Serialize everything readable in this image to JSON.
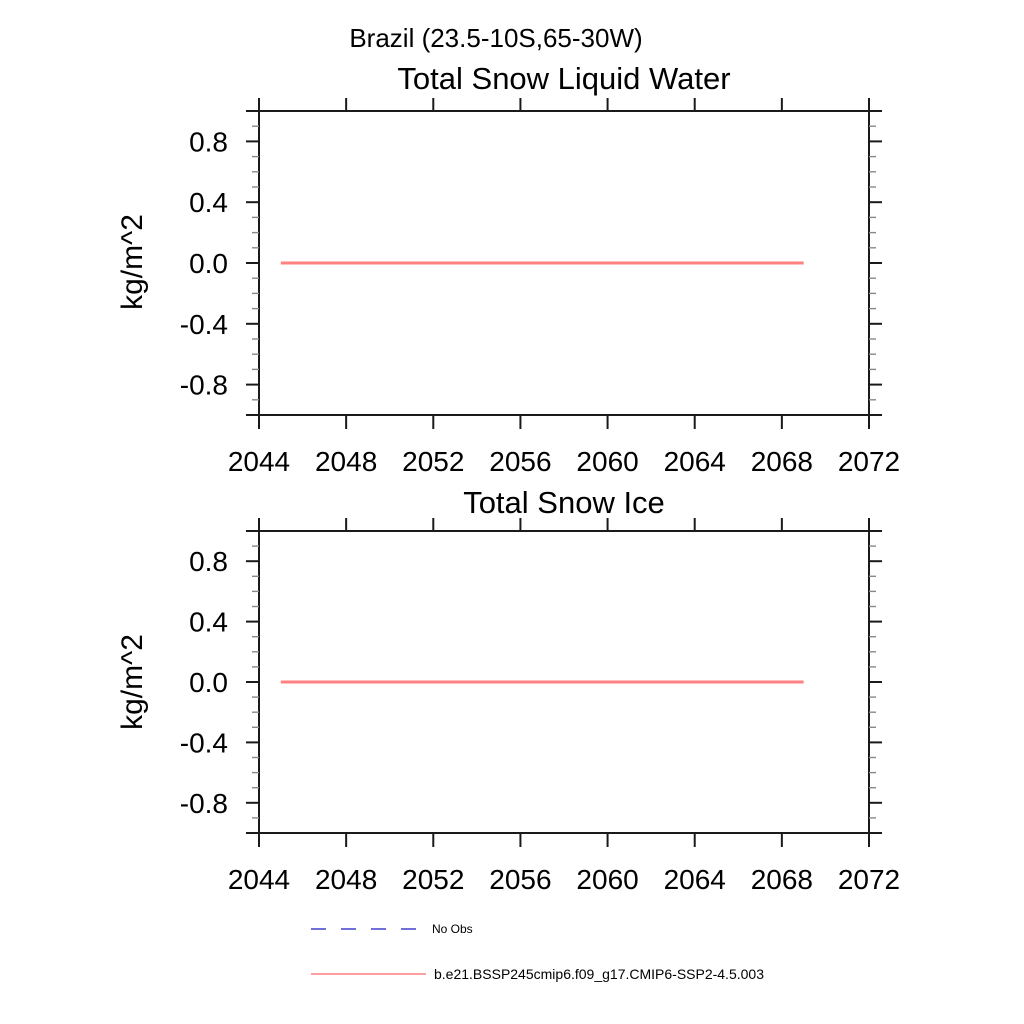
{
  "header": {
    "main_title": "Brazil (23.5-10S,65-30W)"
  },
  "charts": [
    {
      "title": "Total Snow Liquid Water",
      "ylabel": "kg/m^2"
    },
    {
      "title": "Total Snow Ice",
      "ylabel": "kg/m^2"
    }
  ],
  "chart_data": [
    {
      "type": "line",
      "title": "Total Snow Liquid Water",
      "xlabel": "",
      "ylabel": "kg/m^2",
      "xlim": [
        2044,
        2072
      ],
      "ylim": [
        -1.0,
        1.0
      ],
      "x_tick_values": [
        2044,
        2048,
        2052,
        2056,
        2060,
        2064,
        2068,
        2072
      ],
      "x_tick_labels": [
        "2044",
        "2048",
        "2052",
        "2056",
        "2060",
        "2064",
        "2068",
        "2072"
      ],
      "y_tick_values": [
        -0.8,
        -0.4,
        0.0,
        0.4,
        0.8
      ],
      "y_tick_labels": [
        "-0.8",
        "-0.4",
        "0.0",
        "0.4",
        "0.8"
      ],
      "y_minor_step": 0.1,
      "grid": false,
      "legend_position": "bottom-left",
      "series": [
        {
          "name": "b.e21.BSSP245cmip6.f09_g17.CMIP6-SSP2-4.5.003",
          "color": "#FF8080",
          "x": [
            2045,
            2069
          ],
          "y": [
            0.0,
            0.0
          ]
        }
      ]
    },
    {
      "type": "line",
      "title": "Total Snow Ice",
      "xlabel": "",
      "ylabel": "kg/m^2",
      "xlim": [
        2044,
        2072
      ],
      "ylim": [
        -1.0,
        1.0
      ],
      "x_tick_values": [
        2044,
        2048,
        2052,
        2056,
        2060,
        2064,
        2068,
        2072
      ],
      "x_tick_labels": [
        "2044",
        "2048",
        "2052",
        "2056",
        "2060",
        "2064",
        "2068",
        "2072"
      ],
      "y_tick_values": [
        -0.8,
        -0.4,
        0.0,
        0.4,
        0.8
      ],
      "y_tick_labels": [
        "-0.8",
        "-0.4",
        "0.0",
        "0.4",
        "0.8"
      ],
      "y_minor_step": 0.1,
      "grid": false,
      "legend_position": "bottom-left",
      "series": [
        {
          "name": "b.e21.BSSP245cmip6.f09_g17.CMIP6-SSP2-4.5.003",
          "color": "#FF8080",
          "x": [
            2045,
            2069
          ],
          "y": [
            0.0,
            0.0
          ]
        }
      ]
    }
  ],
  "legend": {
    "items": [
      {
        "label": "No Obs",
        "color": "#7070D8",
        "style": "dashed"
      },
      {
        "label": "b.e21.BSSP245cmip6.f09_g17.CMIP6-SSP2-4.5.003",
        "color": "#FF8080",
        "style": "solid"
      }
    ]
  },
  "colors": {
    "background": "#ffffff",
    "axis": "#1a1a1a",
    "minor_tick": "#888888",
    "text": "#000000",
    "series_red": "#FF8080",
    "no_obs_blue": "#7070D8"
  }
}
